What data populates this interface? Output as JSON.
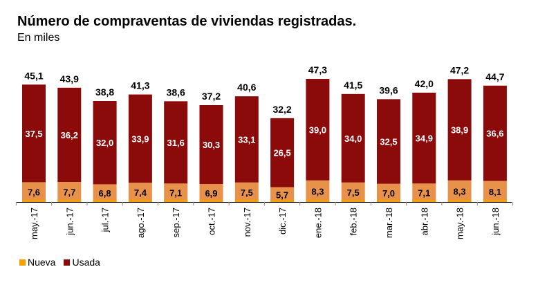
{
  "chart_data": {
    "type": "bar",
    "stacked": true,
    "title": "Número de compraventas de viviendas registradas.",
    "subtitle": "En miles",
    "xlabel": "",
    "ylabel": "",
    "ylim": [
      0,
      50
    ],
    "grid": false,
    "legend_position": "bottom-left",
    "categories": [
      "may.-17",
      "jun.-17",
      "jul.-17",
      "ago.-17",
      "sep.-17",
      "oct.-17",
      "nov.-17",
      "dic.-17",
      "ene.-18",
      "feb.-18",
      "mar.-18",
      "abr.-18",
      "may.-18",
      "jun.-18"
    ],
    "series": [
      {
        "name": "Nueva",
        "color": "#f4a100",
        "label_bg": "#e8914a",
        "values": [
          7.6,
          7.7,
          6.8,
          7.4,
          7.1,
          6.9,
          7.5,
          5.7,
          8.3,
          7.5,
          7.0,
          7.1,
          8.3,
          8.1
        ],
        "labels": [
          "7,6",
          "7,7",
          "6,8",
          "7,4",
          "7,1",
          "6,9",
          "7,5",
          "5,7",
          "8,3",
          "7,5",
          "7,0",
          "7,1",
          "8,3",
          "8,1"
        ]
      },
      {
        "name": "Usada",
        "color": "#8b0a0a",
        "values": [
          37.5,
          36.2,
          32.0,
          33.9,
          31.6,
          30.3,
          33.1,
          26.5,
          39.0,
          34.0,
          32.5,
          34.9,
          38.9,
          36.6
        ],
        "labels": [
          "37,5",
          "36,2",
          "32,0",
          "33,9",
          "31,6",
          "30,3",
          "33,1",
          "26,5",
          "39,0",
          "34,0",
          "32,5",
          "34,9",
          "38,9",
          "36,6"
        ]
      }
    ],
    "totals": [
      45.1,
      43.9,
      38.8,
      41.3,
      38.6,
      37.2,
      40.6,
      32.2,
      47.3,
      41.5,
      39.6,
      42.0,
      47.2,
      44.7
    ],
    "total_labels": [
      "45,1",
      "43,9",
      "38,8",
      "41,3",
      "38,6",
      "37,2",
      "40,6",
      "32,2",
      "47,3",
      "41,5",
      "39,6",
      "42,0",
      "47,2",
      "44,7"
    ]
  }
}
